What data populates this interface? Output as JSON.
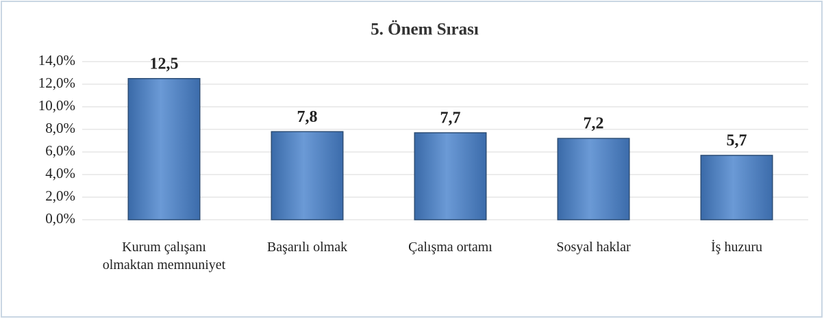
{
  "chart_data": {
    "type": "bar",
    "title": "5. Önem Sırası",
    "categories": [
      "Kurum çalışanı olmaktan memnuniyet",
      "Başarılı olmak",
      "Çalışma ortamı",
      "Sosyal haklar",
      "İş huzuru"
    ],
    "values": [
      12.5,
      7.8,
      7.7,
      7.2,
      5.7
    ],
    "value_labels": [
      "12,5",
      "7,8",
      "7,7",
      "7,2",
      "5,7"
    ],
    "color": "#4f81bd",
    "ylim": [
      0,
      14
    ],
    "yticks": [
      {
        "value": 0,
        "label": "0,0%"
      },
      {
        "value": 2,
        "label": "2,0%"
      },
      {
        "value": 4,
        "label": "4,0%"
      },
      {
        "value": 6,
        "label": "6,0%"
      },
      {
        "value": 8,
        "label": "8,0%"
      },
      {
        "value": 10,
        "label": "10,0%"
      },
      {
        "value": 12,
        "label": "12,0%"
      },
      {
        "value": 14,
        "label": "14,0%"
      }
    ],
    "grid": true
  }
}
